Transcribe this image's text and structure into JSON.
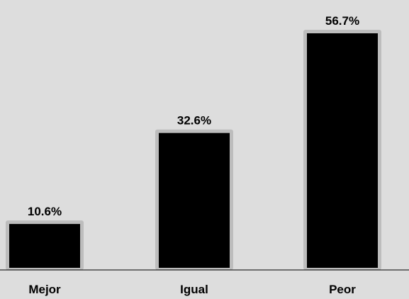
{
  "chart_data": {
    "type": "bar",
    "categories": [
      "Mejor",
      "Igual",
      "Peor"
    ],
    "values": [
      10.6,
      32.6,
      56.7
    ],
    "value_labels": [
      "10.6%",
      "32.6%",
      "56.7%"
    ],
    "unit": "%",
    "title": "",
    "xlabel": "",
    "ylabel": "",
    "ylim": [
      0,
      60
    ],
    "grid": false,
    "legend": "none",
    "colors": {
      "bar": "#000000",
      "bar_shadow": "#bdbdbd",
      "background": "#dddddd",
      "axis": "#000000"
    }
  }
}
